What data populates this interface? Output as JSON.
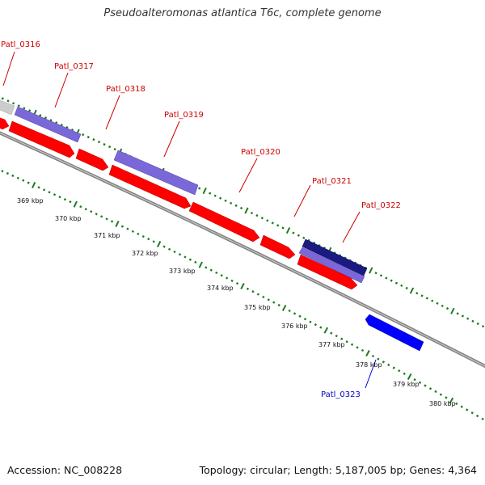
{
  "title": "Pseudoalteromonas atlantica T6c, complete genome",
  "footer": {
    "accession": "Accession: NC_008228",
    "summary": "Topology: circular; Length: 5,187,005 bp; Genes: 4,364"
  },
  "colors": {
    "backbone": "#808080",
    "cds_red": "#ff0000",
    "cds_purple": "#7b68d8",
    "cds_navy": "#1a1a80",
    "cds_blue": "#0000ff",
    "cds_grey": "#cccccc",
    "tick_green": "#1e7a1e",
    "label_red": "#cc0000",
    "label_blue": "#0000cc"
  },
  "genes": [
    {
      "name": "Patl_0316",
      "color": "red"
    },
    {
      "name": "Patl_0317",
      "color": "red"
    },
    {
      "name": "Patl_0318",
      "color": "red"
    },
    {
      "name": "Patl_0319",
      "color": "red"
    },
    {
      "name": "Patl_0320",
      "color": "red"
    },
    {
      "name": "Patl_0321",
      "color": "red"
    },
    {
      "name": "Patl_0322",
      "color": "red"
    },
    {
      "name": "Patl_0323",
      "color": "blue"
    }
  ],
  "kbp_labels": [
    "369 kbp",
    "370 kbp",
    "371 kbp",
    "372 kbp",
    "373 kbp",
    "374 kbp",
    "375 kbp",
    "376 kbp",
    "377 kbp",
    "378 kbp",
    "379 kbp",
    "380 kbp"
  ]
}
